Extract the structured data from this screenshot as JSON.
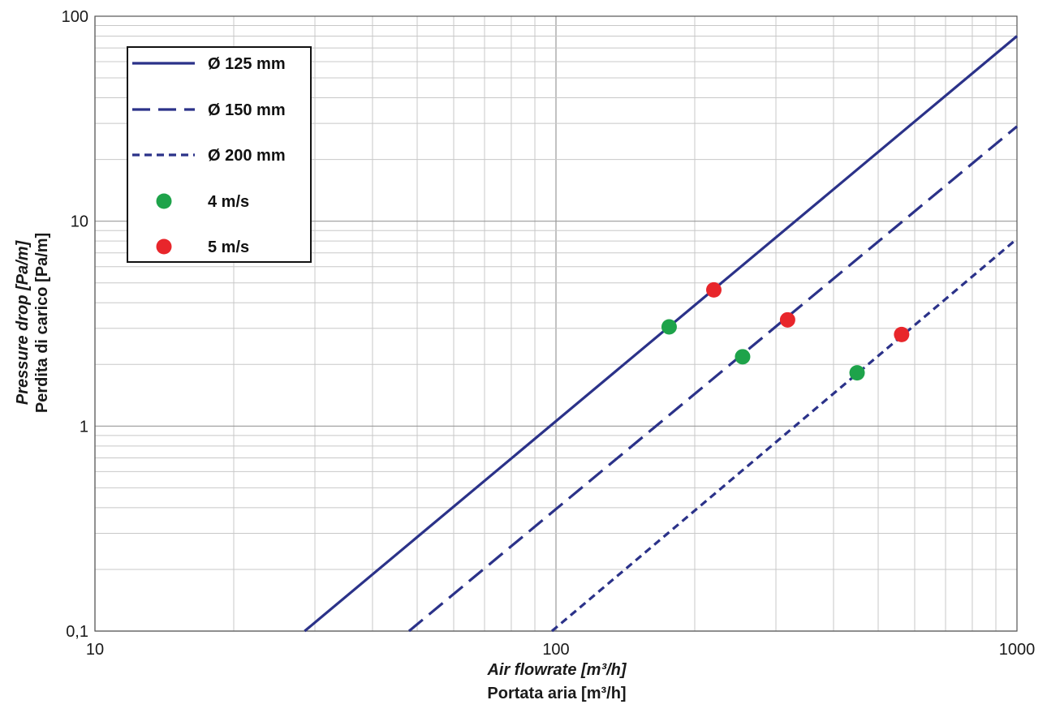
{
  "chart_data": {
    "type": "line",
    "x_scale": "log",
    "y_scale": "log",
    "xlim": [
      10,
      1000
    ],
    "ylim": [
      0.1,
      100
    ],
    "x_ticks": [
      {
        "value": 10,
        "label": "10"
      },
      {
        "value": 100,
        "label": "100"
      },
      {
        "value": 1000,
        "label": "1000"
      }
    ],
    "y_ticks": [
      {
        "value": 0.1,
        "label": "0,1"
      },
      {
        "value": 1,
        "label": "1"
      },
      {
        "value": 10,
        "label": "10"
      },
      {
        "value": 100,
        "label": "100"
      }
    ],
    "xlabel_line1": "Air flowrate [m³/h]",
    "xlabel_line2": "Portata aria [m³/h]",
    "ylabel_line1": "Pressure drop [Pa/m]",
    "ylabel_line2": "Perdita di carico [Pa/m]",
    "grid": true,
    "legend_position": "top-left",
    "line_color": "#2b3289",
    "series": [
      {
        "name": "Ø 125 mm",
        "style": "solid",
        "x": [
          28.5,
          1000
        ],
        "y": [
          0.1,
          80
        ]
      },
      {
        "name": "Ø 150 mm",
        "style": "long-dash",
        "x": [
          48,
          1000
        ],
        "y": [
          0.1,
          29
        ]
      },
      {
        "name": "Ø 200 mm",
        "style": "short-dash",
        "x": [
          98,
          1000
        ],
        "y": [
          0.1,
          8.2
        ]
      }
    ],
    "points": [
      {
        "name": "4 m/s",
        "color": "#1ea34a",
        "x": [
          176,
          254,
          450
        ],
        "y": [
          3.05,
          2.18,
          1.82
        ]
      },
      {
        "name": "5 m/s",
        "color": "#e8262b",
        "x": [
          220,
          318,
          562
        ],
        "y": [
          4.62,
          3.3,
          2.8
        ]
      }
    ]
  }
}
